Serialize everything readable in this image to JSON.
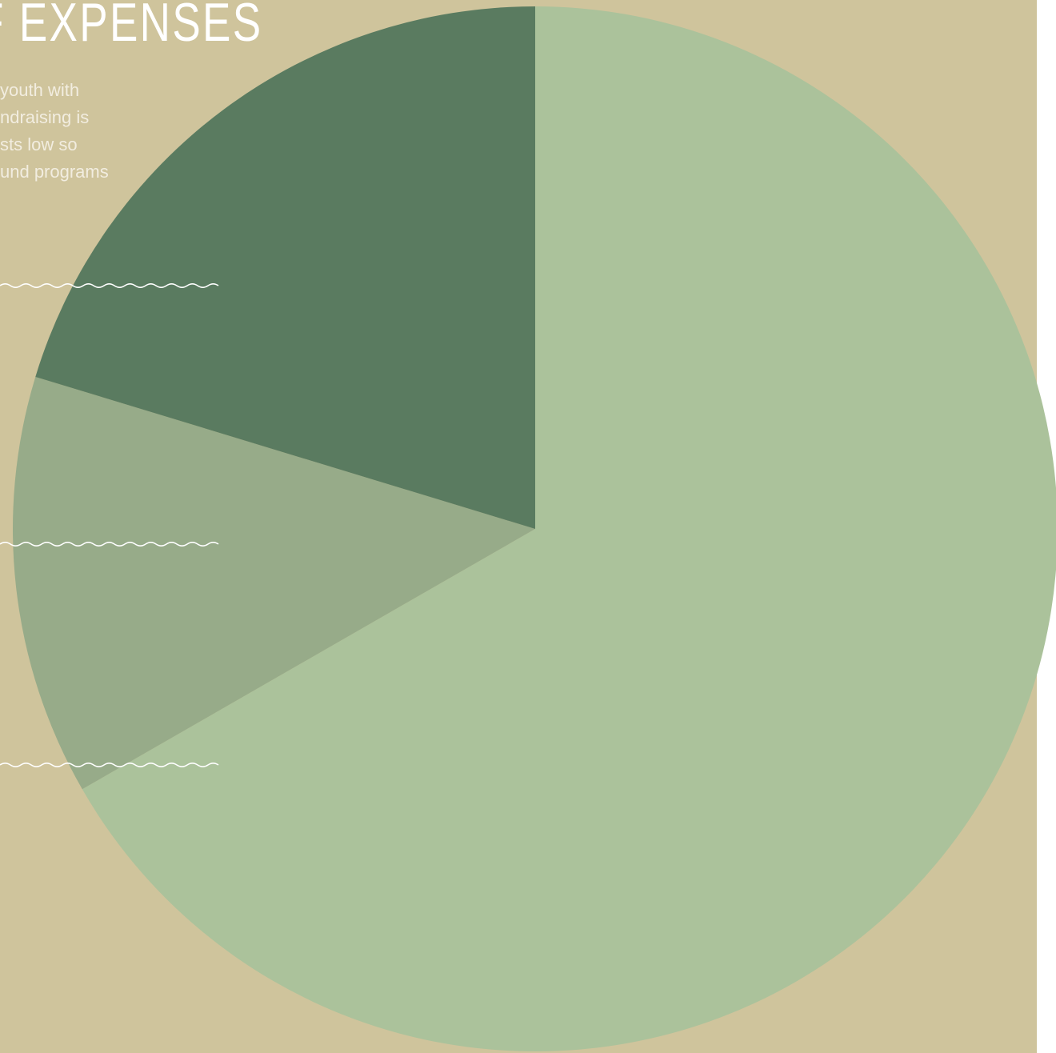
{
  "colors": {
    "background": "#cfc49c",
    "leader": "#ffffff"
  },
  "header": {
    "title": "F EXPENSES"
  },
  "description": {
    "lines": [
      "youth with",
      "ndraising is",
      "sts low so",
      "und programs"
    ]
  },
  "chart_data": {
    "type": "pie",
    "title": "F EXPENSES",
    "start_angle_deg": 0,
    "direction": "clockwise",
    "slices": [
      {
        "value": 66.7,
        "color": "#abc29b"
      },
      {
        "value": 13.0,
        "color": "#97ab89"
      },
      {
        "value": 20.3,
        "color": "#5a7b60"
      }
    ],
    "legend": "none"
  }
}
